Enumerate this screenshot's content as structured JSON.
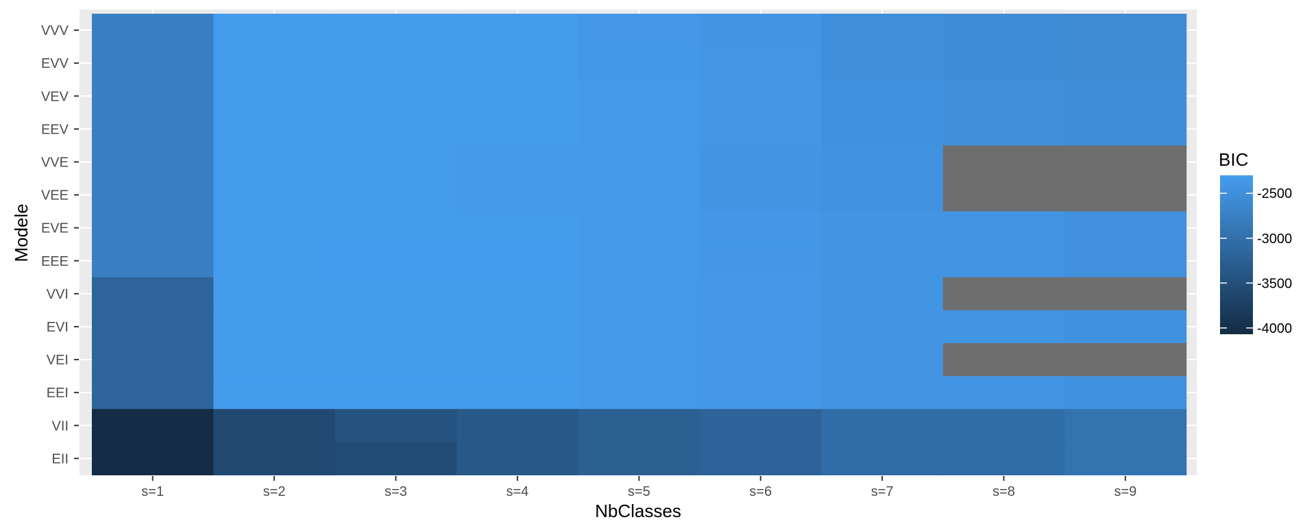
{
  "chart_data": {
    "type": "heatmap",
    "xlabel": "NbClasses",
    "ylabel": "Modele",
    "x_categories": [
      "s=1",
      "s=2",
      "s=3",
      "s=4",
      "s=5",
      "s=6",
      "s=7",
      "s=8",
      "s=9"
    ],
    "y_categories": [
      "VVV",
      "EVV",
      "VEV",
      "EEV",
      "VVE",
      "VEE",
      "EVE",
      "EEE",
      "VVI",
      "EVI",
      "VEI",
      "EEI",
      "VII",
      "EII"
    ],
    "values": [
      [
        -2750,
        -2330,
        -2330,
        -2330,
        -2380,
        -2420,
        -2520,
        -2560,
        -2580
      ],
      [
        -2760,
        -2320,
        -2320,
        -2320,
        -2370,
        -2410,
        -2520,
        -2560,
        -2580
      ],
      [
        -2760,
        -2320,
        -2320,
        -2320,
        -2360,
        -2400,
        -2470,
        -2520,
        -2540
      ],
      [
        -2760,
        -2320,
        -2320,
        -2320,
        -2360,
        -2400,
        -2470,
        -2520,
        -2550
      ],
      [
        -2760,
        -2320,
        -2320,
        -2340,
        -2360,
        -2430,
        -2460,
        null,
        null
      ],
      [
        -2760,
        -2320,
        -2320,
        -2340,
        -2360,
        -2420,
        -2460,
        null,
        null
      ],
      [
        -2760,
        -2320,
        -2320,
        -2330,
        -2360,
        -2390,
        -2420,
        -2420,
        -2480
      ],
      [
        -2760,
        -2320,
        -2310,
        -2310,
        -2350,
        -2390,
        -2420,
        -2420,
        -2480
      ],
      [
        -3180,
        -2330,
        -2330,
        -2330,
        -2360,
        -2380,
        -2430,
        null,
        null
      ],
      [
        -3180,
        -2330,
        -2330,
        -2330,
        -2360,
        -2380,
        -2430,
        -2430,
        -2470
      ],
      [
        -3180,
        -2330,
        -2330,
        -2330,
        -2360,
        -2380,
        -2420,
        null,
        null
      ],
      [
        -3180,
        -2330,
        -2330,
        -2330,
        -2360,
        -2380,
        -2420,
        -2430,
        -2470
      ],
      [
        -4050,
        -3600,
        -3450,
        -3350,
        -3250,
        -3200,
        -3050,
        -3050,
        -2950
      ],
      [
        -4050,
        -3600,
        -3550,
        -3350,
        -3250,
        -3200,
        -3050,
        -3050,
        -2950
      ]
    ],
    "na_color": "#6e6e6e",
    "legend": {
      "title": "BIC",
      "placement": "right",
      "ticks": [
        -2500,
        -3000,
        -3500,
        -4000
      ],
      "tick_labels": [
        "-2500",
        "-3000",
        "-3500",
        "-4000"
      ],
      "range": [
        -4070,
        -2300
      ],
      "low_color": "#132B43",
      "high_color": "#469DEF"
    },
    "panel_background": "#ebebeb",
    "grid": true
  }
}
